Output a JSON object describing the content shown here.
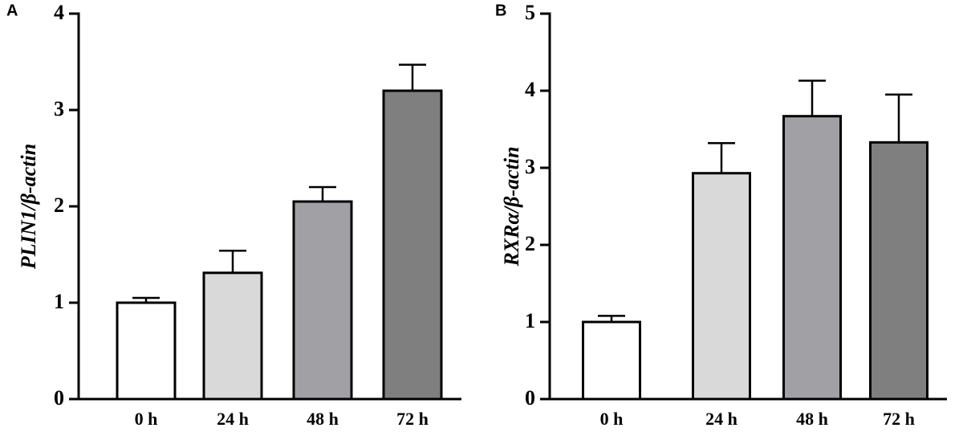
{
  "chart_data": [
    {
      "type": "bar",
      "panel": "A",
      "y_label": "PLIN1/β-actin",
      "categories": [
        "0 h",
        "24 h",
        "48 h",
        "72 h"
      ],
      "values": [
        1.0,
        1.31,
        2.05,
        3.2
      ],
      "errors": [
        0.05,
        0.23,
        0.15,
        0.27
      ],
      "colors": [
        "#ffffff",
        "#d9d9d9",
        "#a0a0a5",
        "#7f7f7f"
      ],
      "ylim": [
        0,
        4
      ],
      "yticks": [
        0,
        1,
        2,
        3,
        4
      ]
    },
    {
      "type": "bar",
      "panel": "B",
      "y_label": "RXRα/β-actin",
      "categories": [
        "0 h",
        "24 h",
        "48 h",
        "72 h"
      ],
      "values": [
        1.0,
        2.93,
        3.67,
        3.33
      ],
      "errors": [
        0.08,
        0.39,
        0.46,
        0.62
      ],
      "colors": [
        "#ffffff",
        "#d9d9d9",
        "#a0a0a5",
        "#7f7f7f"
      ],
      "ylim": [
        0,
        5
      ],
      "yticks": [
        0,
        1,
        2,
        3,
        4,
        5
      ]
    }
  ]
}
